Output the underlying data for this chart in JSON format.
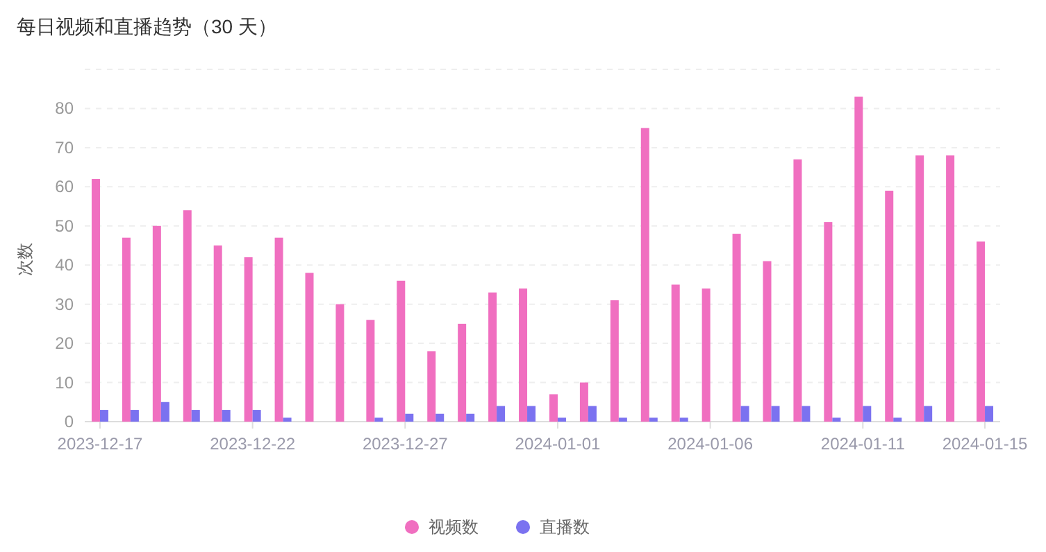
{
  "chart_data": {
    "type": "bar",
    "title": "每日视频和直播趋势（30 天）",
    "ylabel": "次数",
    "categories": [
      "2023-12-17",
      null,
      null,
      null,
      null,
      "2023-12-22",
      null,
      null,
      null,
      null,
      "2023-12-27",
      null,
      null,
      null,
      null,
      "2024-01-01",
      null,
      null,
      null,
      null,
      "2024-01-06",
      null,
      null,
      null,
      null,
      "2024-01-11",
      null,
      null,
      null,
      "2024-01-15"
    ],
    "series": [
      {
        "name": "视频数",
        "color": "#f06fc0",
        "values": [
          62,
          47,
          50,
          54,
          45,
          42,
          47,
          38,
          30,
          26,
          36,
          18,
          25,
          33,
          34,
          7,
          10,
          31,
          75,
          35,
          34,
          48,
          41,
          67,
          51,
          83,
          59,
          68,
          68,
          46
        ]
      },
      {
        "name": "直播数",
        "color": "#7b72f0",
        "values": [
          3,
          3,
          5,
          3,
          3,
          3,
          1,
          0,
          0,
          1,
          2,
          2,
          2,
          4,
          4,
          1,
          4,
          1,
          1,
          1,
          0,
          4,
          4,
          4,
          1,
          4,
          1,
          4,
          0,
          4
        ]
      }
    ],
    "ylim": [
      0,
      90
    ],
    "yticks": [
      0,
      10,
      20,
      30,
      40,
      50,
      60,
      70,
      80,
      {
        "value": 90,
        "label": null
      }
    ],
    "grid": "y",
    "legend": "bottom"
  }
}
